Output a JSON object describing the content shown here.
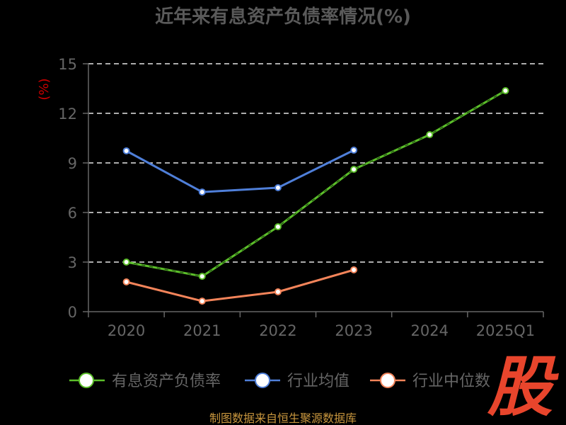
{
  "chart_data": {
    "type": "line",
    "title": "近年来有息资产负债率情况(%)",
    "xlabel": "",
    "ylabel": "(%)",
    "categories": [
      "2020",
      "2021",
      "2022",
      "2023",
      "2024",
      "2025Q1"
    ],
    "ylim": [
      0,
      15
    ],
    "yticks": [
      0,
      3,
      6,
      9,
      12,
      15
    ],
    "grid": true,
    "legend": "bottom",
    "series": [
      {
        "name": "有息资产负债率",
        "color": "#5cbf2a",
        "values": [
          3.0,
          2.14,
          5.14,
          8.61,
          10.71,
          13.37
        ]
      },
      {
        "name": "行业均值",
        "color": "#4f7fd9",
        "values": [
          9.73,
          7.24,
          7.5,
          9.77,
          null,
          null
        ]
      },
      {
        "name": "行业中位数",
        "color": "#f3845a",
        "values": [
          1.8,
          0.64,
          1.2,
          2.53,
          null,
          null
        ]
      }
    ]
  },
  "logo_text": "股",
  "footer": "制图数据来自恒生聚源数据库"
}
